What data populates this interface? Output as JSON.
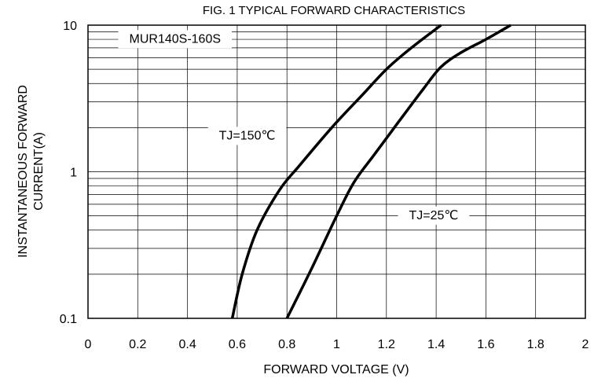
{
  "chart_data": {
    "type": "line",
    "title": "FIG. 1 TYPICAL FORWARD CHARACTERISTICS",
    "xlabel": "FORWARD VOLTAGE (V)",
    "ylabel_lines": [
      "INSTANTANEOUS FORWARD",
      "CURRENT(A)"
    ],
    "xlim": [
      0,
      2
    ],
    "ylim": [
      0.1,
      10
    ],
    "yscale": "log",
    "grid": true,
    "x_ticks": [
      "0",
      "0.2",
      "0.4",
      "0.6",
      "0.8",
      "1",
      "1.2",
      "1.4",
      "1.6",
      "1.8",
      "2"
    ],
    "y_ticks": [
      {
        "value": 0.1,
        "label": "0.1"
      },
      {
        "value": 1,
        "label": "1"
      },
      {
        "value": 10,
        "label": "10"
      }
    ],
    "annotations": [
      {
        "name": "part-number",
        "text": "MUR140S-160S",
        "x": 0.35,
        "y": 8.0
      },
      {
        "name": "label-tj150",
        "text": "TJ=150℃",
        "x": 0.64,
        "y": 1.75
      },
      {
        "name": "label-tj25",
        "text": "TJ=25℃",
        "x": 1.39,
        "y": 0.5
      }
    ],
    "series": [
      {
        "key": "tj150",
        "x": [
          0.58,
          0.62,
          0.68,
          0.77,
          0.85,
          0.98,
          1.1,
          1.2,
          1.3,
          1.42
        ],
        "y": [
          0.1,
          0.2,
          0.4,
          0.75,
          1.1,
          2.0,
          3.3,
          5.0,
          7.0,
          10.0
        ]
      },
      {
        "key": "tj25",
        "x": [
          0.8,
          0.9,
          1.0,
          1.07,
          1.15,
          1.25,
          1.35,
          1.42,
          1.5,
          1.6,
          1.7
        ],
        "y": [
          0.1,
          0.22,
          0.5,
          0.85,
          1.3,
          2.2,
          3.7,
          5.2,
          6.5,
          8.0,
          10.0
        ]
      }
    ]
  }
}
